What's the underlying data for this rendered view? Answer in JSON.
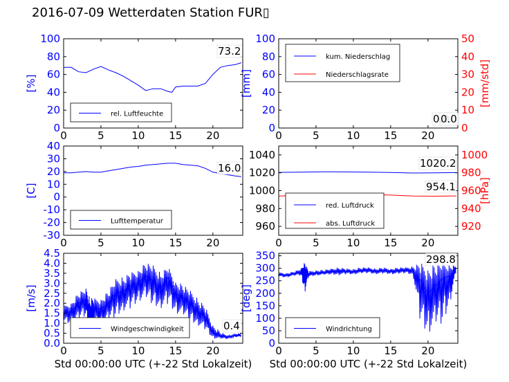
{
  "title": "2016-07-09 Wetterdaten Station FUR▯",
  "xlabel": "Std 00:00:00 UTC (+-22 Std Lokalzeit)",
  "colors": {
    "blue": "#0000ff",
    "red": "#ff0000"
  },
  "chart_data": [
    {
      "type": "line",
      "ylabel": "[%]",
      "ylim": [
        0,
        100
      ],
      "yticks": [
        0,
        20,
        40,
        60,
        80,
        100
      ],
      "xlim": [
        0,
        24
      ],
      "xticks": [
        0,
        5,
        10,
        15,
        20
      ],
      "legend": "lower-left",
      "annotation": "73.2",
      "series": [
        {
          "name": "rel. Luftfeuchte",
          "color": "#0000ff",
          "axis": "left",
          "x": [
            0,
            1,
            2,
            3,
            4,
            5,
            6,
            7,
            8,
            9,
            10,
            11,
            12,
            13,
            14,
            14.5,
            15,
            16,
            17,
            18,
            19,
            20,
            21,
            22,
            23,
            23.8
          ],
          "values": [
            68,
            68,
            63,
            62,
            66,
            69,
            65,
            62,
            58,
            53,
            48,
            42,
            44,
            44,
            41,
            40,
            46,
            47,
            47,
            47,
            50,
            60,
            68,
            70,
            71,
            73.2
          ]
        }
      ]
    },
    {
      "type": "line",
      "ylabel": "[mm]",
      "ylabel_right": "[mm/std]",
      "ylim": [
        0,
        100
      ],
      "yticks": [
        0,
        20,
        40,
        60,
        80,
        100
      ],
      "ylim_right": [
        0,
        50
      ],
      "yticks_right": [
        0,
        10,
        20,
        30,
        40,
        50
      ],
      "xlim": [
        0,
        24
      ],
      "xticks": [
        0,
        5,
        10,
        15,
        20
      ],
      "legend": "upper-left",
      "annotation": "0.0",
      "annotation2": "0.0",
      "series": [
        {
          "name": "kum. Niederschlag",
          "color": "#0000ff",
          "axis": "left",
          "x": [
            0,
            24
          ],
          "values": [
            0,
            0
          ]
        },
        {
          "name": "Niederschlagsrate",
          "color": "#ff0000",
          "axis": "right",
          "x": [
            0,
            24
          ],
          "values": [
            0,
            0
          ]
        }
      ]
    },
    {
      "type": "line",
      "ylabel": "[C]",
      "ylim": [
        -30,
        40
      ],
      "yticks": [
        -30,
        -20,
        -10,
        0,
        10,
        20,
        30,
        40
      ],
      "xlim": [
        0,
        24
      ],
      "xticks": [
        0,
        5,
        10,
        15,
        20
      ],
      "legend": "lower-left",
      "annotation": "16.0",
      "series": [
        {
          "name": "Lufttemperatur",
          "color": "#0000ff",
          "axis": "left",
          "x": [
            0,
            1,
            2,
            3,
            4,
            5,
            6,
            7,
            8,
            9,
            10,
            11,
            12,
            13,
            14,
            15,
            16,
            17,
            18,
            19,
            20,
            21,
            22,
            23,
            23.8
          ],
          "values": [
            19,
            19,
            19.5,
            20,
            19.5,
            19.5,
            20.5,
            21.5,
            22.5,
            23.5,
            24,
            25,
            25.5,
            26,
            26.5,
            26.5,
            25.5,
            25,
            24.5,
            22.5,
            19.5,
            18.5,
            17.5,
            16.5,
            16.0
          ]
        }
      ]
    },
    {
      "type": "line",
      "ylabel_right": "[hPa]",
      "ylim": [
        950,
        1050
      ],
      "yticks": [
        960,
        980,
        1000,
        1020,
        1040
      ],
      "ylim_right": [
        910,
        1010
      ],
      "yticks_right": [
        920,
        940,
        960,
        980,
        1000
      ],
      "xlim": [
        0,
        24
      ],
      "xticks": [
        0,
        5,
        10,
        15,
        20
      ],
      "legend": "lower-left",
      "annotation": "1020.2",
      "annotation2": "954.1",
      "series": [
        {
          "name": "red. Luftdruck",
          "color": "#0000ff",
          "axis": "left",
          "x": [
            0,
            3,
            6,
            9,
            12,
            15,
            18,
            21,
            23.8
          ],
          "values": [
            1020.5,
            1020.8,
            1021.2,
            1021.0,
            1020.8,
            1020.3,
            1019.8,
            1020.0,
            1020.2
          ]
        },
        {
          "name": "abs. Luftdruck",
          "color": "#ff0000",
          "axis": "right",
          "x": [
            0,
            3,
            6,
            9,
            12,
            15,
            18,
            21,
            23.8
          ],
          "values": [
            954.0,
            954.5,
            955.5,
            956.0,
            955.8,
            955.0,
            954.0,
            953.8,
            954.1
          ]
        }
      ]
    },
    {
      "type": "line",
      "ylabel": "[m/s]",
      "ylim": [
        0,
        4.5
      ],
      "yticks": [
        0.0,
        0.5,
        1.0,
        1.5,
        2.0,
        2.5,
        3.0,
        3.5,
        4.0,
        4.5
      ],
      "xlim": [
        0,
        24
      ],
      "xticks": [
        0,
        5,
        10,
        15,
        20
      ],
      "legend": "lower-center",
      "annotation": "0.4",
      "series": [
        {
          "name": "Windgeschwindigkeit",
          "color": "#0000ff",
          "axis": "left",
          "x": [
            0,
            1,
            2,
            3,
            3.5,
            4,
            5,
            6,
            7,
            8,
            9,
            10,
            11,
            12,
            13,
            14,
            15,
            16,
            17,
            18,
            19,
            20,
            21,
            22,
            23,
            23.8
          ],
          "values": [
            1.5,
            1.6,
            2.0,
            2.2,
            1.3,
            1.8,
            1.7,
            2.0,
            2.5,
            2.6,
            2.9,
            3.0,
            3.4,
            3.1,
            2.8,
            3.3,
            2.5,
            2.3,
            2.0,
            1.6,
            1.3,
            0.5,
            0.35,
            0.3,
            0.4,
            0.4
          ],
          "minvalues": [
            1.0,
            0.9,
            1.0,
            1.3,
            0.5,
            0.8,
            0.7,
            1.0,
            1.2,
            1.5,
            1.6,
            2.0,
            2.0,
            1.8,
            1.6,
            1.8,
            1.4,
            1.2,
            1.0,
            0.8,
            0.6,
            0.2,
            0.2,
            0.2,
            0.3,
            0.3
          ],
          "maxvalues": [
            1.9,
            2.1,
            2.6,
            2.8,
            2.4,
            2.3,
            2.3,
            2.7,
            3.3,
            3.4,
            3.6,
            3.8,
            4.1,
            4.0,
            3.6,
            3.9,
            3.2,
            3.0,
            2.7,
            2.3,
            1.9,
            1.0,
            0.6,
            0.4,
            0.5,
            0.5
          ]
        }
      ]
    },
    {
      "type": "line",
      "ylabel": "[deg]",
      "ylim": [
        0,
        360
      ],
      "yticks": [
        0,
        50,
        100,
        150,
        200,
        250,
        300,
        350
      ],
      "xlim": [
        0,
        24
      ],
      "xticks": [
        0,
        5,
        10,
        15,
        20
      ],
      "legend": "lower-left",
      "annotation": "298.8",
      "series": [
        {
          "name": "Windrichtung",
          "color": "#0000ff",
          "axis": "left",
          "x": [
            0,
            1,
            2,
            3,
            3.5,
            4,
            5,
            6,
            7,
            8,
            9,
            10,
            11,
            12,
            13,
            14,
            15,
            16,
            17,
            18,
            19,
            20,
            21,
            22,
            23,
            23.8
          ],
          "values": [
            275,
            272,
            278,
            285,
            290,
            275,
            280,
            282,
            285,
            290,
            288,
            285,
            290,
            292,
            288,
            290,
            288,
            290,
            292,
            290,
            250,
            200,
            230,
            260,
            270,
            298.8
          ],
          "minvalues": [
            265,
            262,
            268,
            270,
            190,
            265,
            270,
            272,
            275,
            270,
            275,
            275,
            278,
            280,
            275,
            278,
            275,
            275,
            280,
            270,
            60,
            20,
            40,
            60,
            150,
            290
          ],
          "maxvalues": [
            285,
            282,
            288,
            300,
            330,
            290,
            295,
            295,
            300,
            305,
            300,
            300,
            305,
            305,
            300,
            305,
            300,
            305,
            305,
            310,
            330,
            320,
            330,
            330,
            320,
            310
          ]
        }
      ]
    }
  ]
}
